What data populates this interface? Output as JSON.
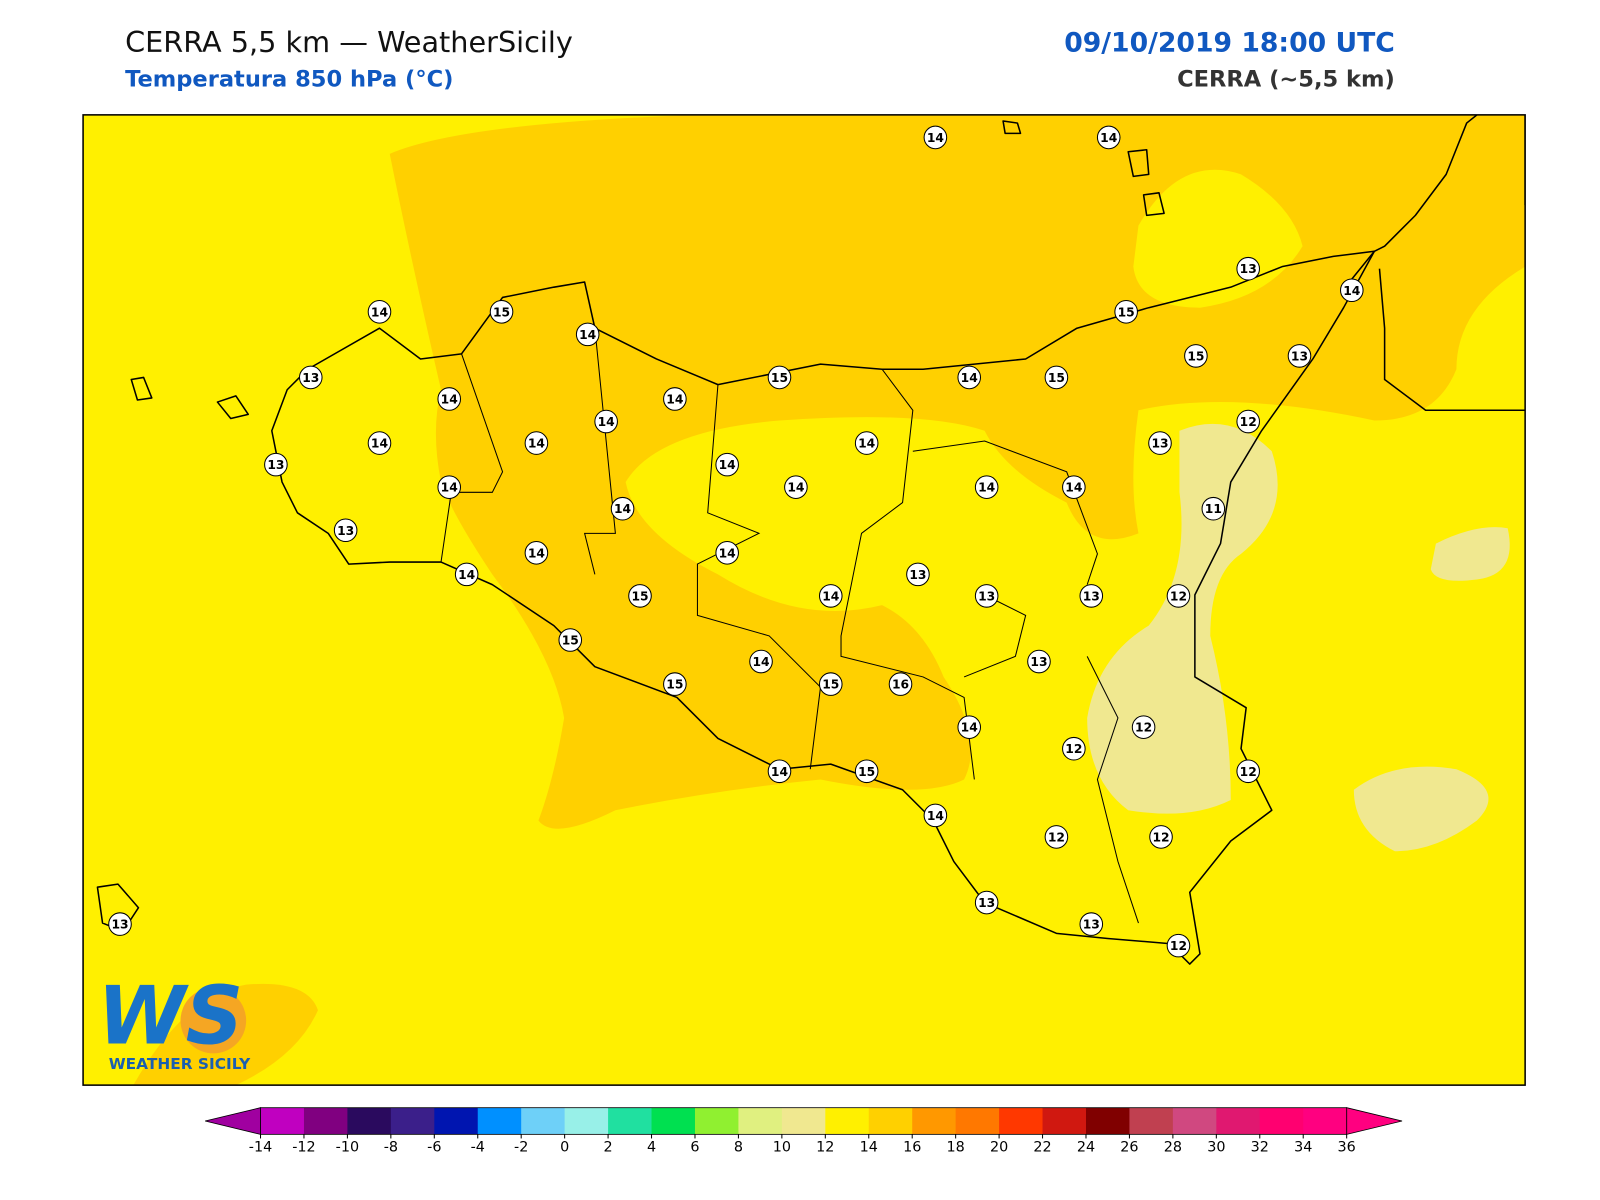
{
  "header": {
    "title": "CERRA 5,5 km — WeatherSicily",
    "subtitle": "Temperatura 850 hPa (°C)",
    "datetime": "09/10/2019 18:00 UTC",
    "model": "CERRA (~5,5 km)"
  },
  "stations": {
    "values": [
      14,
      14,
      13,
      14,
      15,
      15,
      13,
      14,
      15,
      14,
      13,
      14,
      14,
      15,
      14,
      15,
      12,
      14,
      14,
      14,
      14,
      13,
      13,
      14,
      14,
      14,
      14,
      14,
      11,
      14,
      13,
      14,
      14,
      14,
      13,
      15,
      14,
      13,
      13,
      12,
      15,
      13,
      14,
      15,
      15,
      16,
      14,
      12,
      12,
      12,
      14,
      15,
      14,
      12,
      12,
      13,
      13,
      12,
      13
    ]
  },
  "colorbar": {
    "ticks": [
      -14,
      -12,
      -10,
      -8,
      -6,
      -4,
      -2,
      0,
      2,
      4,
      6,
      8,
      10,
      12,
      14,
      16,
      18,
      20,
      22,
      24,
      26,
      28,
      30,
      32,
      34,
      36
    ],
    "colors": [
      "#c000c0",
      "#800080",
      "#2a0a5e",
      "#3b1f8a",
      "#0015b0",
      "#0090ff",
      "#6ed0f8",
      "#98f0e8",
      "#20e0a0",
      "#00e050",
      "#90f030",
      "#e0f080",
      "#f0e890",
      "#fff000",
      "#ffd000",
      "#ff9800",
      "#ff7800",
      "#ff3800",
      "#d01810",
      "#800000",
      "#c04050",
      "#d04880",
      "#e01870",
      "#ff0070",
      "#ff0080"
    ],
    "under": "#a000a0",
    "over": "#ff0080"
  },
  "logo": {
    "mark": "WS",
    "name": "WEATHER SICILY"
  }
}
